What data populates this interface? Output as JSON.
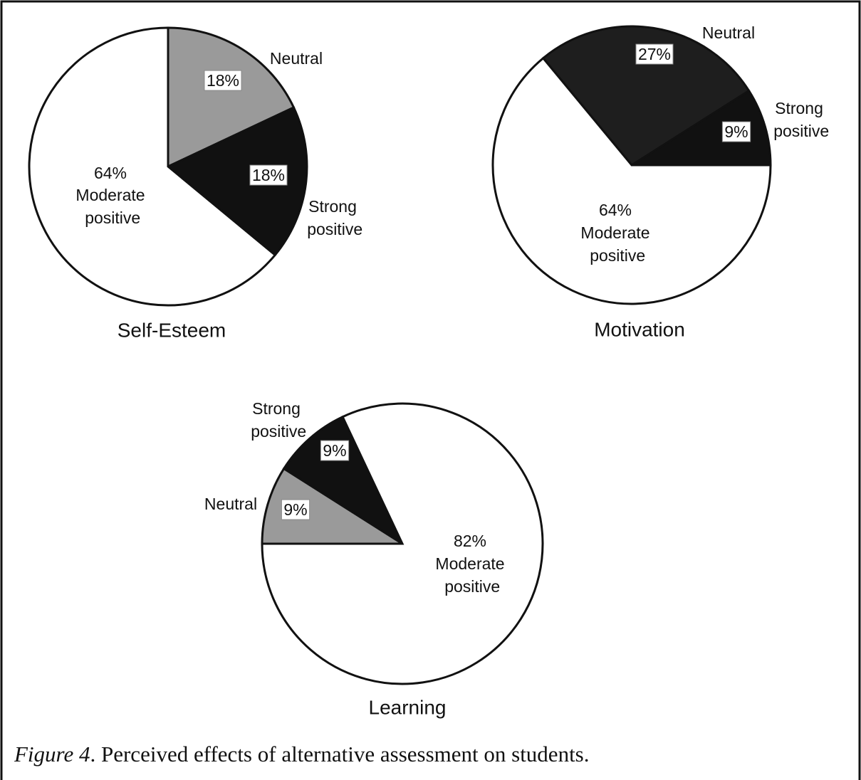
{
  "chart_data": [
    {
      "type": "pie",
      "title": "Self-Esteem",
      "categories": [
        "Neutral",
        "Strong positive",
        "Moderate positive"
      ],
      "values": [
        18,
        18,
        64
      ],
      "value_labels": [
        "18%",
        "18%",
        "64%"
      ],
      "colors": [
        "#9a9a9a",
        "#111111",
        "#ffffff"
      ]
    },
    {
      "type": "pie",
      "title": "Motivation",
      "categories": [
        "Neutral",
        "Strong positive",
        "Moderate positive"
      ],
      "values": [
        27,
        9,
        64
      ],
      "value_labels": [
        "27%",
        "9%",
        "64%"
      ],
      "colors": [
        "#1e1e1e",
        "#111111",
        "#ffffff"
      ]
    },
    {
      "type": "pie",
      "title": "Learning",
      "categories": [
        "Neutral",
        "Strong positive",
        "Moderate positive"
      ],
      "values": [
        9,
        9,
        82
      ],
      "value_labels": [
        "9%",
        "9%",
        "82%"
      ],
      "colors": [
        "#9a9a9a",
        "#111111",
        "#ffffff"
      ]
    }
  ],
  "caption": {
    "label": "Figure 4",
    "text": ". Perceived effects of alternative assessment on students."
  }
}
